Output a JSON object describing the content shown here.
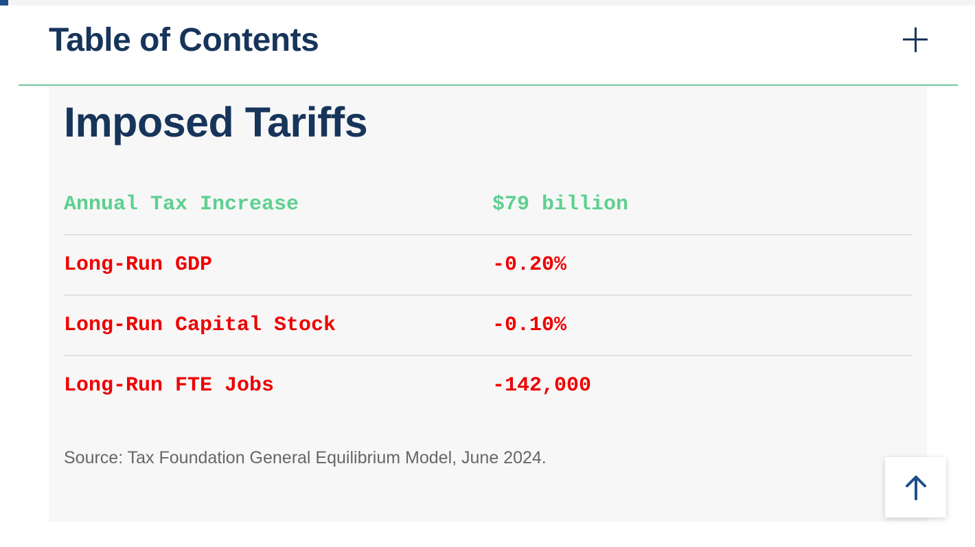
{
  "toc": {
    "title": "Table of Contents",
    "toggle_icon": "plus-icon"
  },
  "card": {
    "title": "Imposed Tariffs",
    "rows": [
      {
        "label": "Annual Tax Increase",
        "value": "$79 billion",
        "status_color": "#5dd08f"
      },
      {
        "label": "Long-Run GDP",
        "value": "-0.20%",
        "status_color": "#ee0000"
      },
      {
        "label": "Long-Run Capital Stock",
        "value": "-0.10%",
        "status_color": "#ee0000"
      },
      {
        "label": "Long-Run FTE Jobs",
        "value": "-142,000",
        "status_color": "#ee0000"
      }
    ],
    "source": "Source: Tax Foundation General Equilibrium Model, June 2024."
  },
  "back_to_top": {
    "icon": "arrow-up-icon"
  },
  "colors": {
    "heading": "#17355a",
    "accent_line": "#6fc79b",
    "positive": "#5dd08f",
    "negative": "#ee0000",
    "card_background": "#f7f7f7"
  }
}
